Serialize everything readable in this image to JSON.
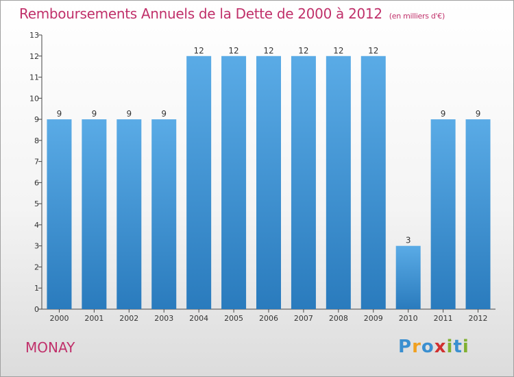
{
  "header": {
    "title": "Remboursements Annuels de la Dette de 2000 à 2012",
    "subtitle": "(en milliers d'€)"
  },
  "commune": "MONAY",
  "logo": {
    "text": "Proxiti",
    "letters": [
      {
        "ch": "P",
        "color": "#3a8fd0"
      },
      {
        "ch": "r",
        "color": "#f0a020"
      },
      {
        "ch": "o",
        "color": "#3a8fd0"
      },
      {
        "ch": "x",
        "color": "#d03030"
      },
      {
        "ch": "i",
        "color": "#80b030"
      },
      {
        "ch": "t",
        "color": "#3a8fd0"
      },
      {
        "ch": "i",
        "color": "#80b030"
      }
    ]
  },
  "chart_data": {
    "type": "bar",
    "title": "Remboursements Annuels de la Dette de 2000 à 2012",
    "unit": "(en milliers d'€)",
    "categories": [
      "2000",
      "2001",
      "2002",
      "2003",
      "2004",
      "2005",
      "2006",
      "2007",
      "2008",
      "2009",
      "2010",
      "2011",
      "2012"
    ],
    "values": [
      9,
      9,
      9,
      9,
      12,
      12,
      12,
      12,
      12,
      12,
      3,
      9,
      9
    ],
    "ylim": [
      0,
      13
    ],
    "yticks": [
      0,
      1,
      2,
      3,
      4,
      5,
      6,
      7,
      8,
      9,
      10,
      11,
      12,
      13
    ],
    "grid": false,
    "bar_color_top": "#5aabe6",
    "bar_color_bottom": "#2a7bbd"
  }
}
